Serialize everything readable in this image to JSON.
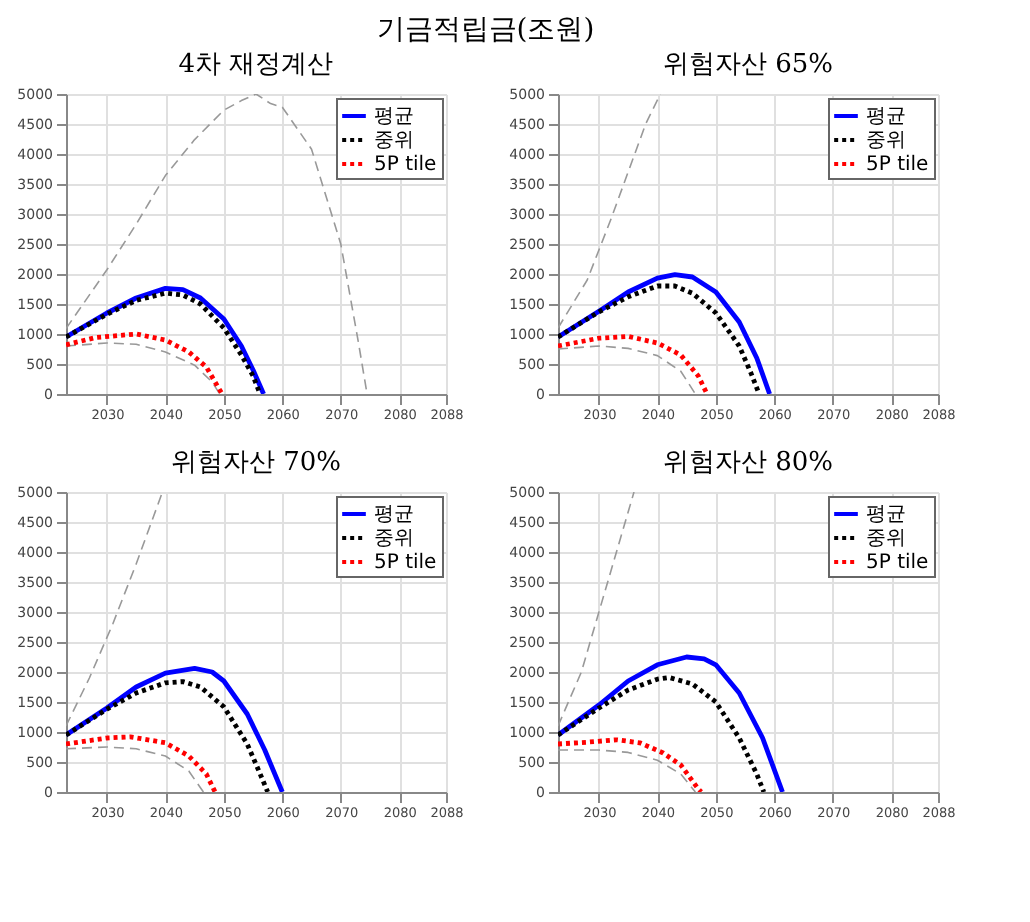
{
  "chart_data": [
    {
      "type": "line",
      "title": "4차 재정계산",
      "annotations": [
        "기금적립금(조원)"
      ],
      "xlim": [
        2023,
        2088
      ],
      "xticks": [
        2030,
        2040,
        2050,
        2060,
        2070,
        2080,
        2088
      ],
      "ylim": [
        0,
        5000
      ],
      "yticks": [
        0,
        500,
        1000,
        1500,
        2000,
        2500,
        3000,
        3500,
        4000,
        4500,
        5000
      ],
      "grid": true,
      "legend": "top right",
      "series": [
        {
          "color": "#999999",
          "line_style": "dashed",
          "x": [
            2023,
            2030,
            2035,
            2040,
            2045,
            2050,
            2053,
            2055.5,
            2058,
            2060,
            2065,
            2070,
            2073,
            2074.5
          ],
          "values": [
            1090,
            2070,
            2830,
            3640,
            4240,
            4730,
            4890,
            5000,
            4840,
            4780,
            4080,
            2500,
            870,
            0
          ]
        },
        {
          "color": "#999999",
          "line_style": "dashed",
          "x": [
            2023,
            2030,
            2035,
            2040,
            2045,
            2048,
            2049.3
          ],
          "values": [
            800,
            850,
            830,
            700,
            480,
            200,
            0
          ]
        },
        {
          "name": "평균",
          "color": "#0000ff",
          "line_style": "solid",
          "x": [
            2023,
            2030,
            2035,
            2040,
            2043,
            2046,
            2050,
            2053,
            2055,
            2056.8
          ],
          "values": [
            950,
            1350,
            1600,
            1760,
            1740,
            1600,
            1250,
            800,
            400,
            0
          ]
        },
        {
          "name": "중위",
          "color": "#000000",
          "line_style": "dotted",
          "x": [
            2023,
            2030,
            2035,
            2040,
            2043,
            2046,
            2050,
            2053,
            2055,
            2056.2
          ],
          "values": [
            950,
            1330,
            1560,
            1680,
            1650,
            1500,
            1100,
            650,
            300,
            0
          ]
        },
        {
          "name": "5P tile",
          "color": "#ff0000",
          "line_style": "dotted",
          "x": [
            2023,
            2028,
            2035,
            2040,
            2044,
            2047,
            2049.7
          ],
          "values": [
            820,
            940,
            1000,
            900,
            700,
            450,
            0
          ]
        }
      ]
    },
    {
      "type": "line",
      "title": "위험자산 65%",
      "xlim": [
        2023,
        2088
      ],
      "xticks": [
        2030,
        2040,
        2050,
        2060,
        2070,
        2080,
        2088
      ],
      "ylim": [
        0,
        5000
      ],
      "yticks": [
        0,
        500,
        1000,
        1500,
        2000,
        2500,
        3000,
        3500,
        4000,
        4500,
        5000
      ],
      "grid": true,
      "legend": "top right",
      "series": [
        {
          "color": "#999999",
          "line_style": "dashed",
          "x": [
            2023,
            2028,
            2032,
            2035,
            2038,
            2040.5
          ],
          "values": [
            1100,
            1900,
            2900,
            3700,
            4500,
            5000
          ]
        },
        {
          "color": "#999999",
          "line_style": "dashed",
          "x": [
            2023,
            2030,
            2035,
            2040,
            2044,
            2046.5
          ],
          "values": [
            750,
            800,
            760,
            640,
            380,
            0
          ]
        },
        {
          "name": "평균",
          "color": "#0000ff",
          "line_style": "solid",
          "x": [
            2023,
            2030,
            2035,
            2040,
            2043,
            2046,
            2050,
            2054,
            2057,
            2059.2
          ],
          "values": [
            950,
            1380,
            1700,
            1930,
            1990,
            1950,
            1700,
            1200,
            600,
            0
          ]
        },
        {
          "name": "중위",
          "color": "#000000",
          "line_style": "dotted",
          "x": [
            2023,
            2030,
            2035,
            2040,
            2043,
            2046,
            2050,
            2054,
            2056,
            2057.4
          ],
          "values": [
            950,
            1370,
            1620,
            1800,
            1800,
            1680,
            1350,
            800,
            350,
            0
          ]
        },
        {
          "name": "5P tile",
          "color": "#ff0000",
          "line_style": "dotted",
          "x": [
            2023,
            2030,
            2035,
            2040,
            2044,
            2047,
            2048.5
          ],
          "values": [
            800,
            930,
            960,
            850,
            650,
            300,
            0
          ]
        }
      ]
    },
    {
      "type": "line",
      "title": "위험자산 70%",
      "xlim": [
        2023,
        2088
      ],
      "xticks": [
        2030,
        2040,
        2050,
        2060,
        2070,
        2080,
        2088
      ],
      "ylim": [
        0,
        5000
      ],
      "yticks": [
        0,
        500,
        1000,
        1500,
        2000,
        2500,
        3000,
        3500,
        4000,
        4500,
        5000
      ],
      "grid": true,
      "legend": "top right",
      "series": [
        {
          "color": "#999999",
          "line_style": "dashed",
          "x": [
            2023,
            2027,
            2031,
            2035,
            2038,
            2039.5
          ],
          "values": [
            1100,
            1900,
            2800,
            3800,
            4600,
            5000
          ]
        },
        {
          "color": "#999999",
          "line_style": "dashed",
          "x": [
            2023,
            2030,
            2035,
            2040,
            2044,
            2046.5
          ],
          "values": [
            720,
            750,
            720,
            600,
            350,
            0
          ]
        },
        {
          "name": "평균",
          "color": "#0000ff",
          "line_style": "solid",
          "x": [
            2023,
            2030,
            2035,
            2040,
            2045,
            2048,
            2050,
            2054,
            2057,
            2060
          ],
          "values": [
            950,
            1400,
            1750,
            1980,
            2060,
            2000,
            1850,
            1300,
            700,
            0
          ]
        },
        {
          "name": "중위",
          "color": "#000000",
          "line_style": "dotted",
          "x": [
            2023,
            2030,
            2035,
            2040,
            2043,
            2046,
            2050,
            2054,
            2056,
            2057.5
          ],
          "values": [
            950,
            1380,
            1650,
            1820,
            1840,
            1750,
            1420,
            800,
            350,
            0
          ]
        },
        {
          "name": "5P tile",
          "color": "#ff0000",
          "line_style": "dotted",
          "x": [
            2023,
            2030,
            2034,
            2040,
            2044,
            2047,
            2048.5
          ],
          "values": [
            800,
            900,
            920,
            820,
            600,
            300,
            0
          ]
        }
      ]
    },
    {
      "type": "line",
      "title": "위험자산 80%",
      "xlim": [
        2023,
        2088
      ],
      "xticks": [
        2030,
        2040,
        2050,
        2060,
        2070,
        2080,
        2088
      ],
      "ylim": [
        0,
        5000
      ],
      "yticks": [
        0,
        500,
        1000,
        1500,
        2000,
        2500,
        3000,
        3500,
        4000,
        4500,
        5000
      ],
      "grid": true,
      "legend": "top right",
      "series": [
        {
          "color": "#999999",
          "line_style": "dashed",
          "x": [
            2023,
            2027,
            2030,
            2033,
            2036
          ],
          "values": [
            1100,
            2000,
            3000,
            4000,
            5000
          ]
        },
        {
          "color": "#999999",
          "line_style": "dashed",
          "x": [
            2023,
            2030,
            2035,
            2040,
            2044,
            2046.5
          ],
          "values": [
            700,
            700,
            660,
            530,
            300,
            0
          ]
        },
        {
          "name": "평균",
          "color": "#0000ff",
          "line_style": "solid",
          "x": [
            2023,
            2030,
            2035,
            2040,
            2045,
            2048,
            2050,
            2054,
            2058,
            2061.4
          ],
          "values": [
            950,
            1450,
            1850,
            2120,
            2250,
            2220,
            2120,
            1650,
            900,
            0
          ]
        },
        {
          "name": "중위",
          "color": "#000000",
          "line_style": "dotted",
          "x": [
            2023,
            2030,
            2035,
            2040,
            2042,
            2046,
            2050,
            2054,
            2057,
            2058.2
          ],
          "values": [
            950,
            1400,
            1700,
            1880,
            1910,
            1800,
            1500,
            900,
            300,
            0
          ]
        },
        {
          "name": "5P tile",
          "color": "#ff0000",
          "line_style": "dotted",
          "x": [
            2023,
            2028,
            2033,
            2037,
            2041,
            2044,
            2047,
            2047.5
          ],
          "values": [
            800,
            830,
            870,
            820,
            650,
            450,
            50,
            0
          ]
        }
      ]
    }
  ]
}
